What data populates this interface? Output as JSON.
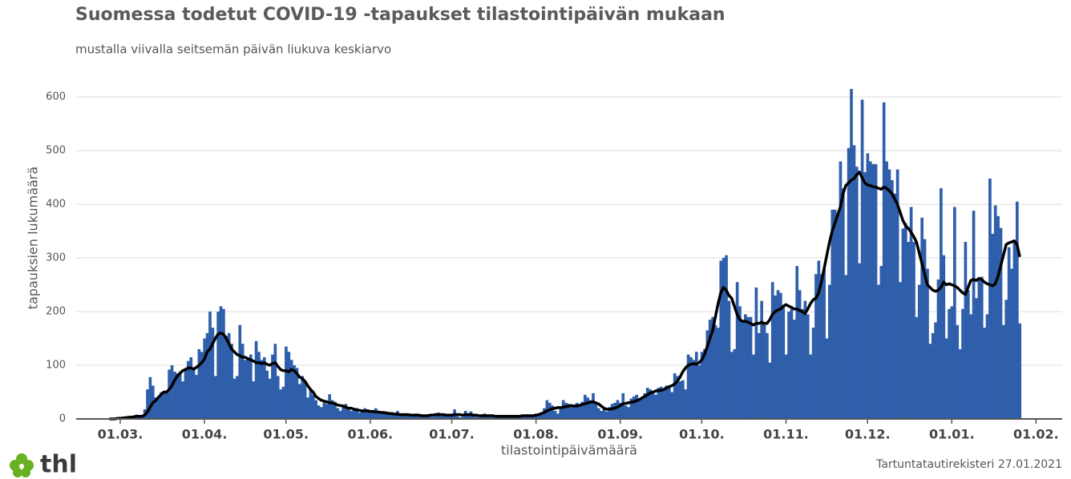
{
  "chart_data": {
    "type": "bar",
    "title": "Suomessa todetut COVID-19 -tapaukset tilastointipäivän mukaan",
    "subtitle": "mustalla viivalla seitsemän päivän liukuva keskiarvo",
    "y_label": "tapauksien lukumäärä",
    "x_label": "tilastointipäivämäärä",
    "source": "Tartuntatautirekisteri 27.01.2021",
    "logo_text": "thl",
    "ylim": [
      0,
      630
    ],
    "yticks": [
      0,
      100,
      200,
      300,
      400,
      500,
      600
    ],
    "grid": true,
    "xticks": [
      "01.03.",
      "01.04.",
      "01.05.",
      "01.06.",
      "01.07.",
      "01.08.",
      "01.09.",
      "01.10.",
      "01.11.",
      "01.12.",
      "01.01.",
      "01.02."
    ],
    "categories": [
      "26.02.",
      "27.02.",
      "28.02.",
      "29.02.",
      "01.03.",
      "02.03.",
      "03.03.",
      "04.03.",
      "05.03.",
      "06.03.",
      "07.03.",
      "08.03.",
      "09.03.",
      "10.03.",
      "11.03.",
      "12.03.",
      "13.03.",
      "14.03.",
      "15.03.",
      "16.03.",
      "17.03.",
      "18.03.",
      "19.03.",
      "20.03.",
      "21.03.",
      "22.03.",
      "23.03.",
      "24.03.",
      "25.03.",
      "26.03.",
      "27.03.",
      "28.03.",
      "29.03.",
      "30.03.",
      "31.03.",
      "01.04.",
      "02.04.",
      "03.04.",
      "04.04.",
      "05.04.",
      "06.04.",
      "07.04.",
      "08.04.",
      "09.04.",
      "10.04.",
      "11.04.",
      "12.04.",
      "13.04.",
      "14.04.",
      "15.04.",
      "16.04.",
      "17.04.",
      "18.04.",
      "19.04.",
      "20.04.",
      "21.04.",
      "22.04.",
      "23.04.",
      "24.04.",
      "25.04.",
      "26.04.",
      "27.04.",
      "28.04.",
      "29.04.",
      "30.04.",
      "01.05.",
      "02.05.",
      "03.05.",
      "04.05.",
      "05.05.",
      "06.05.",
      "07.05.",
      "08.05.",
      "09.05.",
      "10.05.",
      "11.05.",
      "12.05.",
      "13.05.",
      "14.05.",
      "15.05.",
      "16.05.",
      "17.05.",
      "18.05.",
      "19.05.",
      "20.05.",
      "21.05.",
      "22.05.",
      "23.05.",
      "24.05.",
      "25.05.",
      "26.05.",
      "27.05.",
      "28.05.",
      "29.05.",
      "30.05.",
      "31.05.",
      "01.06.",
      "02.06.",
      "03.06.",
      "04.06.",
      "05.06.",
      "06.06.",
      "07.06.",
      "08.06.",
      "09.06.",
      "10.06.",
      "11.06.",
      "12.06.",
      "13.06.",
      "14.06.",
      "15.06.",
      "16.06.",
      "17.06.",
      "18.06.",
      "19.06.",
      "20.06.",
      "21.06.",
      "22.06.",
      "23.06.",
      "24.06.",
      "25.06.",
      "26.06.",
      "27.06.",
      "28.06.",
      "29.06.",
      "30.06.",
      "01.07.",
      "02.07.",
      "03.07.",
      "04.07.",
      "05.07.",
      "06.07.",
      "07.07.",
      "08.07.",
      "09.07.",
      "10.07.",
      "11.07.",
      "12.07.",
      "13.07.",
      "14.07.",
      "15.07.",
      "16.07.",
      "17.07.",
      "18.07.",
      "19.07.",
      "20.07.",
      "21.07.",
      "22.07.",
      "23.07.",
      "24.07.",
      "25.07.",
      "26.07.",
      "27.07.",
      "28.07.",
      "29.07.",
      "30.07.",
      "31.07.",
      "01.08.",
      "02.08.",
      "03.08.",
      "04.08.",
      "05.08.",
      "06.08.",
      "07.08.",
      "08.08.",
      "09.08.",
      "10.08.",
      "11.08.",
      "12.08.",
      "13.08.",
      "14.08.",
      "15.08.",
      "16.08.",
      "17.08.",
      "18.08.",
      "19.08.",
      "20.08.",
      "21.08.",
      "22.08.",
      "23.08.",
      "24.08.",
      "25.08.",
      "26.08.",
      "27.08.",
      "28.08.",
      "29.08.",
      "30.08.",
      "31.08.",
      "01.09.",
      "02.09.",
      "03.09.",
      "04.09.",
      "05.09.",
      "06.09.",
      "07.09.",
      "08.09.",
      "09.09.",
      "10.09.",
      "11.09.",
      "12.09.",
      "13.09.",
      "14.09.",
      "15.09.",
      "16.09.",
      "17.09.",
      "18.09.",
      "19.09.",
      "20.09.",
      "21.09.",
      "22.09.",
      "23.09.",
      "24.09.",
      "25.09.",
      "26.09.",
      "27.09.",
      "28.09.",
      "29.09.",
      "30.09.",
      "01.10.",
      "02.10.",
      "03.10.",
      "04.10.",
      "05.10.",
      "06.10.",
      "07.10.",
      "08.10.",
      "09.10.",
      "10.10.",
      "11.10.",
      "12.10.",
      "13.10.",
      "14.10.",
      "15.10.",
      "16.10.",
      "17.10.",
      "18.10.",
      "19.10.",
      "20.10.",
      "21.10.",
      "22.10.",
      "23.10.",
      "24.10.",
      "25.10.",
      "26.10.",
      "27.10.",
      "28.10.",
      "29.10.",
      "30.10.",
      "31.10.",
      "01.11.",
      "02.11.",
      "03.11.",
      "04.11.",
      "05.11.",
      "06.11.",
      "07.11.",
      "08.11.",
      "09.11.",
      "10.11.",
      "11.11.",
      "12.11.",
      "13.11.",
      "14.11.",
      "15.11.",
      "16.11.",
      "17.11.",
      "18.11.",
      "19.11.",
      "20.11.",
      "21.11.",
      "22.11.",
      "23.11.",
      "24.11.",
      "25.11.",
      "26.11.",
      "27.11.",
      "28.11.",
      "29.11.",
      "30.11.",
      "01.12.",
      "02.12.",
      "03.12.",
      "04.12.",
      "05.12.",
      "06.12.",
      "07.12.",
      "08.12.",
      "09.12.",
      "10.12.",
      "11.12.",
      "12.12.",
      "13.12.",
      "14.12.",
      "15.12.",
      "16.12.",
      "17.12.",
      "18.12.",
      "19.12.",
      "20.12.",
      "21.12.",
      "22.12.",
      "23.12.",
      "24.12.",
      "25.12.",
      "26.12.",
      "27.12.",
      "28.12.",
      "29.12.",
      "30.12.",
      "31.12.",
      "01.01.",
      "02.01.",
      "03.01.",
      "04.01.",
      "05.01.",
      "06.01.",
      "07.01.",
      "08.01.",
      "09.01.",
      "10.01.",
      "11.01.",
      "12.01.",
      "13.01.",
      "14.01.",
      "15.01.",
      "16.01.",
      "17.01.",
      "18.01.",
      "19.01.",
      "20.01.",
      "21.01.",
      "22.01.",
      "23.01.",
      "24.01.",
      "25.01.",
      "26.01.",
      "27.01.",
      "28.01.",
      "29.01.",
      "30.01.",
      "31.01.",
      "01.02."
    ],
    "series": [
      {
        "type": "bar",
        "color": "#2f5fab",
        "values": [
          1,
          0,
          1,
          2,
          3,
          2,
          5,
          4,
          6,
          6,
          8,
          5,
          6,
          18,
          55,
          78,
          62,
          40,
          38,
          50,
          48,
          52,
          92,
          100,
          88,
          85,
          88,
          70,
          95,
          108,
          115,
          96,
          82,
          130,
          125,
          150,
          160,
          200,
          170,
          80,
          200,
          210,
          205,
          155,
          160,
          140,
          75,
          80,
          175,
          140,
          110,
          115,
          120,
          70,
          145,
          125,
          110,
          115,
          90,
          75,
          120,
          140,
          80,
          55,
          60,
          135,
          125,
          110,
          100,
          95,
          65,
          80,
          70,
          40,
          55,
          45,
          35,
          25,
          22,
          30,
          28,
          46,
          35,
          32,
          20,
          15,
          25,
          28,
          22,
          15,
          18,
          20,
          12,
          15,
          20,
          18,
          12,
          15,
          20,
          14,
          13,
          10,
          10,
          12,
          8,
          9,
          15,
          10,
          8,
          6,
          7,
          9,
          6,
          10,
          7,
          5,
          5,
          8,
          7,
          4,
          10,
          12,
          6,
          8,
          7,
          5,
          6,
          18,
          5,
          3,
          4,
          15,
          8,
          14,
          6,
          4,
          3,
          7,
          10,
          5,
          4,
          6,
          5,
          4,
          3,
          5,
          6,
          7,
          4,
          3,
          5,
          6,
          8,
          4,
          5,
          6,
          7,
          10,
          8,
          12,
          20,
          35,
          30,
          25,
          15,
          10,
          20,
          35,
          30,
          28,
          25,
          22,
          30,
          28,
          32,
          45,
          40,
          35,
          48,
          30,
          20,
          15,
          18,
          14,
          22,
          28,
          30,
          35,
          30,
          48,
          25,
          22,
          38,
          42,
          45,
          35,
          40,
          48,
          58,
          55,
          50,
          45,
          58,
          60,
          55,
          62,
          58,
          50,
          85,
          80,
          70,
          72,
          55,
          120,
          115,
          110,
          125,
          100,
          125,
          130,
          165,
          185,
          190,
          175,
          170,
          295,
          300,
          305,
          220,
          125,
          130,
          255,
          210,
          180,
          195,
          190,
          190,
          120,
          245,
          160,
          220,
          180,
          160,
          105,
          255,
          230,
          240,
          235,
          210,
          120,
          200,
          205,
          185,
          285,
          240,
          205,
          220,
          195,
          120,
          170,
          270,
          295,
          270,
          280,
          150,
          250,
          390,
          390,
          380,
          480,
          430,
          268,
          505,
          615,
          510,
          470,
          290,
          595,
          460,
          495,
          480,
          475,
          475,
          250,
          285,
          590,
          480,
          465,
          445,
          420,
          465,
          255,
          355,
          365,
          330,
          395,
          330,
          190,
          250,
          375,
          335,
          280,
          140,
          160,
          180,
          260,
          430,
          305,
          150,
          205,
          210,
          395,
          175,
          130,
          205,
          330,
          240,
          195,
          388,
          225,
          260,
          265,
          170,
          195,
          448,
          345,
          398,
          378,
          356,
          175,
          222,
          320,
          280,
          330,
          405,
          178,
          null,
          null,
          null,
          null,
          null,
          null
        ]
      },
      {
        "type": "line",
        "color": "#000000",
        "values": [
          0,
          0,
          0,
          1,
          1,
          2,
          2,
          3,
          3,
          4,
          5,
          5,
          5,
          7,
          13,
          22,
          30,
          34,
          40,
          45,
          50,
          50,
          55,
          62,
          72,
          80,
          85,
          90,
          92,
          95,
          95,
          93,
          96,
          100,
          105,
          112,
          125,
          130,
          140,
          150,
          158,
          160,
          158,
          150,
          140,
          130,
          125,
          120,
          118,
          115,
          115,
          112,
          110,
          108,
          105,
          105,
          103,
          105,
          102,
          100,
          103,
          105,
          98,
          92,
          90,
          90,
          88,
          92,
          90,
          85,
          78,
          75,
          70,
          62,
          55,
          50,
          42,
          38,
          35,
          33,
          32,
          30,
          30,
          28,
          26,
          25,
          24,
          22,
          20,
          20,
          18,
          17,
          16,
          15,
          15,
          15,
          14,
          14,
          13,
          13,
          12,
          12,
          11,
          10,
          10,
          9,
          9,
          8,
          8,
          8,
          8,
          7,
          7,
          7,
          7,
          6,
          6,
          6,
          7,
          7,
          8,
          8,
          8,
          8,
          7,
          7,
          7,
          8,
          8,
          8,
          7,
          8,
          8,
          8,
          7,
          7,
          6,
          6,
          6,
          6,
          6,
          6,
          5,
          5,
          5,
          5,
          5,
          5,
          5,
          5,
          5,
          5,
          6,
          6,
          6,
          6,
          6,
          7,
          8,
          10,
          12,
          15,
          17,
          19,
          20,
          21,
          21,
          22,
          23,
          24,
          25,
          24,
          24,
          25,
          27,
          28,
          30,
          31,
          32,
          30,
          28,
          24,
          20,
          18,
          18,
          19,
          20,
          22,
          25,
          28,
          29,
          30,
          31,
          32,
          34,
          36,
          39,
          42,
          45,
          48,
          50,
          52,
          53,
          53,
          55,
          58,
          60,
          62,
          65,
          70,
          78,
          88,
          95,
          100,
          102,
          103,
          102,
          105,
          110,
          120,
          135,
          150,
          165,
          190,
          215,
          235,
          245,
          240,
          230,
          225,
          210,
          195,
          185,
          182,
          182,
          180,
          178,
          175,
          178,
          178,
          180,
          178,
          178,
          185,
          195,
          200,
          203,
          205,
          210,
          213,
          210,
          208,
          205,
          205,
          202,
          200,
          196,
          205,
          215,
          222,
          225,
          235,
          255,
          280,
          305,
          330,
          350,
          365,
          380,
          395,
          420,
          435,
          440,
          445,
          448,
          455,
          460,
          450,
          440,
          436,
          435,
          433,
          432,
          430,
          428,
          432,
          430,
          425,
          420,
          410,
          400,
          385,
          370,
          360,
          355,
          348,
          340,
          330,
          310,
          290,
          270,
          250,
          245,
          240,
          238,
          240,
          245,
          255,
          250,
          252,
          250,
          248,
          245,
          240,
          235,
          232,
          245,
          258,
          260,
          258,
          262,
          260,
          255,
          252,
          250,
          248,
          252,
          265,
          285,
          305,
          325,
          328,
          330,
          332,
          325,
          302,
          null,
          null,
          null,
          null,
          null,
          null
        ]
      }
    ]
  }
}
